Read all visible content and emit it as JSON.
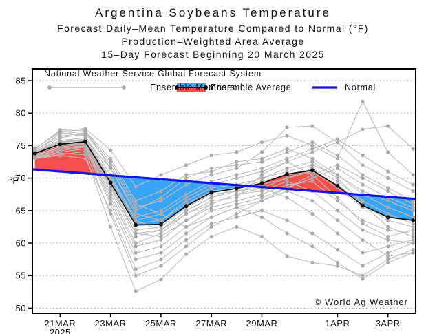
{
  "header": {
    "title": "Argentina Soybeans Temperature",
    "subtitle1": "Forecast Daily–Mean Temperature Compared to Normal (°F)",
    "subtitle2": "Production–Weighted Area Average",
    "subtitle3": "15–Day Forecast Beginning 20 March 2025"
  },
  "legend": {
    "heading": "National Weather Service Global Forecast System",
    "members_label": "Ensemble Members",
    "average_label": "Ensemble Average",
    "normal_label": "Normal"
  },
  "watermark": "© World Ag Weather",
  "chart_data": {
    "type": "line",
    "title": "Argentina Soybeans Temperature",
    "xlabel": "",
    "ylabel": "°F",
    "ylim": [
      49.2,
      86.8
    ],
    "yticks": [
      50,
      55,
      60,
      65,
      70,
      75,
      80,
      85
    ],
    "xlim_days": [
      -0.1,
      15.1
    ],
    "xtick_days": [
      1,
      3,
      5,
      7,
      9,
      12,
      14
    ],
    "xtick_labels": [
      "21MAR",
      "23MAR",
      "25MAR",
      "27MAR",
      "29MAR",
      "1APR",
      "3APR"
    ],
    "xtick_sublabels": [
      "2025",
      "",
      "",
      "",
      "",
      "",
      ""
    ],
    "grid": "horizontal-dotted",
    "legend_position": "top-left-inside",
    "days": [
      0,
      1,
      2,
      3,
      4,
      5,
      6,
      7,
      8,
      9,
      10,
      11,
      12,
      13,
      14,
      15
    ],
    "start_date": "20 March 2025",
    "ensemble_average": [
      73.8,
      75.2,
      75.6,
      69.3,
      62.8,
      62.9,
      65.7,
      67.8,
      68.4,
      69.2,
      70.6,
      71.2,
      68.8,
      65.8,
      64.0,
      63.5
    ],
    "normal": {
      "day_start": -0.1,
      "value_start": 71.35,
      "day_end": 15.1,
      "value_end": 66.8
    },
    "members": [
      [
        74.2,
        76.8,
        77.2,
        73.0,
        66.5,
        68.0,
        70.5,
        71.0,
        72.5,
        73.0,
        74.5,
        73.0,
        70.5,
        68.0,
        66.5,
        65.0
      ],
      [
        74.4,
        77.4,
        77.6,
        74.3,
        68.7,
        70.5,
        72.0,
        73.5,
        74.0,
        75.5,
        76.5,
        75.0,
        73.0,
        81.8,
        74.0,
        70.5
      ],
      [
        74.0,
        76.2,
        76.8,
        72.0,
        65.5,
        66.5,
        69.0,
        70.5,
        71.5,
        74.0,
        77.8,
        78.0,
        75.5,
        72.0,
        70.0,
        68.0
      ],
      [
        74.6,
        77.0,
        76.5,
        70.5,
        63.5,
        62.0,
        64.5,
        66.0,
        67.5,
        68.5,
        70.0,
        71.5,
        69.5,
        66.5,
        64.5,
        63.0
      ],
      [
        73.9,
        75.4,
        75.8,
        69.5,
        63.0,
        63.5,
        66.0,
        68.0,
        68.5,
        69.5,
        70.5,
        71.0,
        68.5,
        65.5,
        64.0,
        63.5
      ],
      [
        73.5,
        74.8,
        75.2,
        68.5,
        61.5,
        61.0,
        63.5,
        65.5,
        66.5,
        67.5,
        69.0,
        69.5,
        66.5,
        63.5,
        62.0,
        61.5
      ],
      [
        73.2,
        73.8,
        73.6,
        62.5,
        52.6,
        54.4,
        58.3,
        61.0,
        62.5,
        61.0,
        58.0,
        57.0,
        56.5,
        55.0,
        57.5,
        59.0
      ],
      [
        73.0,
        73.5,
        73.0,
        65.0,
        56.0,
        57.5,
        60.5,
        63.0,
        64.0,
        65.0,
        63.5,
        61.5,
        59.0,
        56.5,
        58.5,
        60.0
      ],
      [
        73.4,
        74.2,
        74.8,
        66.5,
        58.5,
        59.5,
        62.5,
        65.0,
        66.0,
        67.0,
        68.5,
        70.0,
        71.5,
        69.0,
        67.0,
        65.5
      ],
      [
        73.8,
        75.0,
        75.5,
        69.0,
        62.0,
        62.5,
        65.5,
        67.5,
        68.0,
        68.5,
        67.0,
        64.5,
        61.5,
        58.5,
        59.5,
        60.5
      ],
      [
        74.1,
        75.8,
        76.2,
        70.0,
        64.0,
        65.0,
        67.5,
        69.5,
        70.5,
        71.5,
        73.0,
        74.5,
        76.0,
        73.5,
        71.0,
        69.0
      ],
      [
        73.6,
        74.6,
        75.0,
        67.5,
        60.0,
        61.5,
        64.5,
        66.5,
        67.0,
        70.5,
        72.5,
        70.5,
        67.0,
        63.0,
        61.0,
        62.0
      ],
      [
        74.3,
        76.4,
        77.0,
        72.5,
        66.0,
        64.5,
        62.5,
        64.0,
        65.5,
        66.5,
        68.0,
        66.5,
        63.5,
        60.5,
        58.0,
        58.5
      ],
      [
        73.7,
        75.2,
        75.4,
        68.8,
        61.5,
        62.0,
        65.0,
        67.0,
        68.5,
        70.0,
        71.5,
        72.5,
        70.0,
        66.0,
        62.5,
        61.0
      ],
      [
        73.3,
        74.0,
        74.5,
        66.0,
        57.5,
        58.5,
        61.5,
        64.0,
        65.5,
        64.0,
        61.5,
        59.5,
        57.0,
        54.5,
        57.0,
        58.5
      ],
      [
        74.0,
        75.6,
        76.0,
        71.5,
        65.0,
        67.0,
        70.0,
        71.5,
        72.0,
        72.5,
        74.0,
        75.5,
        73.5,
        70.5,
        68.5,
        66.5
      ],
      [
        73.5,
        74.4,
        74.9,
        67.0,
        59.5,
        60.5,
        63.5,
        66.0,
        67.5,
        68.0,
        69.5,
        68.0,
        65.0,
        62.0,
        60.5,
        60.0
      ],
      [
        73.9,
        75.5,
        75.9,
        69.8,
        63.5,
        64.5,
        67.0,
        69.0,
        70.0,
        71.0,
        72.5,
        74.0,
        75.5,
        77.5,
        78.0,
        74.5
      ],
      [
        73.1,
        73.6,
        74.1,
        64.5,
        55.0,
        56.5,
        59.5,
        62.5,
        64.5,
        66.5,
        68.5,
        70.5,
        72.0,
        70.0,
        68.0,
        66.0
      ],
      [
        74.5,
        77.2,
        77.4,
        71.5,
        64.5,
        63.5,
        66.5,
        68.5,
        69.0,
        70.0,
        71.0,
        72.0,
        70.5,
        67.5,
        65.5,
        64.0
      ],
      [
        73.8,
        75.0,
        75.3,
        68.0,
        61.0,
        62.0,
        65.0,
        67.0,
        68.0,
        69.0,
        70.0,
        71.0,
        69.0,
        66.0,
        63.5,
        62.5
      ]
    ],
    "colors": {
      "above_normal_fill": "#f6504d",
      "below_normal_fill": "#3aa5f4",
      "normal_line": "#1212ef",
      "average_line": "#0d0d0d",
      "member_line": "#bdbdbd",
      "member_dot": "#a9a9a9",
      "grid": "#999999",
      "border": "#000000"
    }
  }
}
